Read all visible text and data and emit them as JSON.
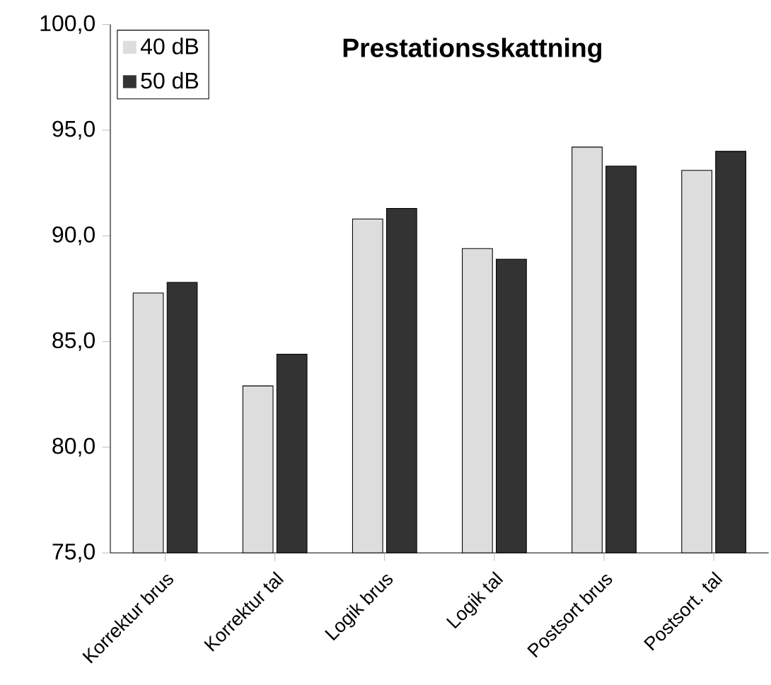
{
  "chart_data": {
    "type": "bar",
    "title": "Prestationsskattning",
    "categories": [
      "Korrektur brus",
      "Korrektur tal",
      "Logik brus",
      "Logik tal",
      "Postsort brus",
      "Postsort. tal"
    ],
    "series": [
      {
        "name": "40 dB",
        "color": "#dddddd",
        "values": [
          87.3,
          82.9,
          90.8,
          89.4,
          94.2,
          93.1
        ]
      },
      {
        "name": "50 dB",
        "color": "#333333",
        "values": [
          87.8,
          84.4,
          91.3,
          88.9,
          93.3,
          94.0
        ]
      }
    ],
    "ylim": [
      75,
      100
    ],
    "yticks": [
      {
        "value": 75,
        "label": "75,0"
      },
      {
        "value": 80,
        "label": "80,0"
      },
      {
        "value": 85,
        "label": "85,0"
      },
      {
        "value": 90,
        "label": "90,0"
      },
      {
        "value": 95,
        "label": "95,0"
      },
      {
        "value": 100,
        "label": "100,0"
      }
    ],
    "legend": "top left"
  }
}
